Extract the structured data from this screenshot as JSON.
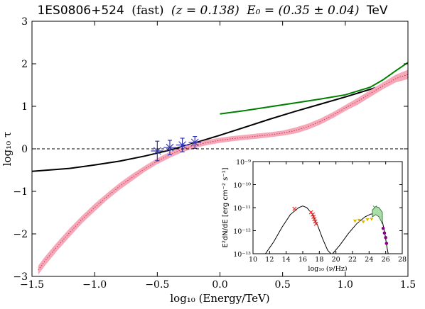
{
  "title": {
    "source": "1ES0806+524",
    "mode": "(fast)",
    "redshift": "(z = 0.138)",
    "energy": "E₀ = (0.35 ± 0.04)",
    "unit": "TeV"
  },
  "chart_data": [
    {
      "type": "line",
      "xlabel": "log₁₀ (Energy/TeV)",
      "ylabel": "log₁₀ τ",
      "xlim": [
        -1.5,
        1.5
      ],
      "ylim": [
        -3,
        3
      ],
      "xticks": [
        -1.5,
        -1.0,
        -0.5,
        0.0,
        0.5,
        1.0,
        1.5
      ],
      "xtick_labels": [
        "−1.5",
        "−1.0",
        "−0.5",
        "0.0",
        "0.5",
        "1.0",
        "1.5"
      ],
      "yticks": [
        -3,
        -2,
        -1,
        0,
        1,
        2,
        3
      ],
      "ytick_labels": [
        "−3",
        "−2",
        "−1",
        "0",
        "1",
        "2",
        "3"
      ],
      "grid": false,
      "reference_line": {
        "y": 0,
        "style": "dashed",
        "color": "#000000"
      },
      "series": [
        {
          "style": "line",
          "color": "#000000",
          "x": [
            -1.5,
            -1.2,
            -1.0,
            -0.8,
            -0.6,
            -0.4,
            -0.2,
            0.0,
            0.2,
            0.4,
            0.6,
            0.8,
            1.0,
            1.2,
            1.4,
            1.5
          ],
          "y": [
            -0.53,
            -0.46,
            -0.38,
            -0.29,
            -0.17,
            -0.03,
            0.14,
            0.32,
            0.51,
            0.7,
            0.88,
            1.05,
            1.22,
            1.4,
            1.58,
            1.67
          ]
        },
        {
          "style": "line",
          "color": "#008000",
          "x": [
            0.0,
            0.2,
            0.4,
            0.6,
            0.8,
            1.0,
            1.2,
            1.3,
            1.4,
            1.5
          ],
          "y": [
            0.82,
            0.9,
            0.99,
            1.08,
            1.17,
            1.27,
            1.45,
            1.62,
            1.83,
            2.03
          ]
        },
        {
          "style": "band",
          "fill": "#f7a8b8",
          "median_color": "#c03050",
          "x": [
            -1.45,
            -1.4,
            -1.3,
            -1.2,
            -1.1,
            -1.0,
            -0.9,
            -0.8,
            -0.7,
            -0.6,
            -0.5,
            -0.4,
            -0.3,
            -0.2,
            -0.1,
            0.0,
            0.1,
            0.2,
            0.3,
            0.4,
            0.5,
            0.6,
            0.7,
            0.8,
            0.9,
            1.0,
            1.1,
            1.2,
            1.3,
            1.4,
            1.5
          ],
          "y": [
            -2.85,
            -2.65,
            -2.3,
            -1.97,
            -1.66,
            -1.38,
            -1.12,
            -0.88,
            -0.67,
            -0.47,
            -0.29,
            -0.14,
            -0.01,
            0.08,
            0.15,
            0.2,
            0.24,
            0.27,
            0.3,
            0.33,
            0.37,
            0.43,
            0.52,
            0.64,
            0.79,
            0.96,
            1.12,
            1.3,
            1.48,
            1.65,
            1.75
          ],
          "upper": [
            -2.75,
            -2.55,
            -2.2,
            -1.87,
            -1.57,
            -1.29,
            -1.04,
            -0.8,
            -0.59,
            -0.4,
            -0.22,
            -0.07,
            0.05,
            0.14,
            0.21,
            0.26,
            0.3,
            0.33,
            0.36,
            0.39,
            0.43,
            0.5,
            0.59,
            0.71,
            0.86,
            1.03,
            1.2,
            1.38,
            1.56,
            1.74,
            1.86
          ],
          "lower": [
            -2.96,
            -2.76,
            -2.4,
            -2.07,
            -1.75,
            -1.47,
            -1.2,
            -0.96,
            -0.75,
            -0.54,
            -0.36,
            -0.21,
            -0.08,
            0.02,
            0.09,
            0.14,
            0.18,
            0.21,
            0.24,
            0.27,
            0.31,
            0.36,
            0.45,
            0.57,
            0.72,
            0.89,
            1.04,
            1.22,
            1.4,
            1.56,
            1.64
          ]
        },
        {
          "style": "points",
          "color": "#3333aa",
          "marker": "x",
          "x": [
            -0.5,
            -0.4,
            -0.3,
            -0.2
          ],
          "y": [
            -0.05,
            0.03,
            0.09,
            0.15
          ],
          "yerr": [
            0.23,
            0.17,
            0.16,
            0.14
          ],
          "xerr": [
            0.05,
            0.05,
            0.05,
            0.05
          ]
        }
      ]
    },
    {
      "type": "scatter",
      "xlabel": "log₁₀ (ν/Hz)",
      "ylabel": "E²dN/dE [erg cm⁻² s⁻¹]",
      "xlim": [
        10,
        28
      ],
      "ylim": [
        -13,
        -9
      ],
      "yscale": "log",
      "xticks": [
        10,
        12,
        14,
        16,
        18,
        20,
        22,
        24,
        26,
        28
      ],
      "xtick_labels": [
        "10",
        "12",
        "14",
        "16",
        "18",
        "20",
        "22",
        "24",
        "26",
        "28"
      ],
      "yticks": [
        -13,
        -12,
        -11,
        -10,
        -9
      ],
      "ytick_labels": [
        "10⁻¹³",
        "10⁻¹²",
        "10⁻¹¹",
        "10⁻¹⁰",
        "10⁻⁹"
      ],
      "series": [
        {
          "style": "line",
          "color": "#000000",
          "x": [
            11.5,
            12.5,
            13.5,
            14.5,
            15.5,
            16.0,
            16.5,
            17.2,
            17.8,
            18.4,
            19.0,
            19.4
          ],
          "y": [
            -13.0,
            -12.48,
            -11.85,
            -11.3,
            -11.0,
            -10.93,
            -11.0,
            -11.3,
            -11.78,
            -12.35,
            -12.85,
            -13.0
          ]
        },
        {
          "style": "line",
          "color": "#000000",
          "x": [
            19.6,
            20.5,
            21.5,
            22.5,
            23.5,
            24.2,
            24.8,
            25.2,
            25.6,
            25.9,
            26.1,
            26.3
          ],
          "y": [
            -13.0,
            -12.62,
            -12.12,
            -11.7,
            -11.4,
            -11.28,
            -11.25,
            -11.3,
            -11.6,
            -12.1,
            -12.6,
            -13.0
          ]
        },
        {
          "style": "points",
          "color": "#ee2222",
          "marker": "x",
          "x": [
            15.0,
            17.0,
            17.2,
            17.3,
            17.4,
            17.5,
            17.6
          ],
          "y": [
            -11.05,
            -11.2,
            -11.3,
            -11.4,
            -11.5,
            -11.6,
            -11.7
          ]
        },
        {
          "style": "points",
          "color": "#ddbb00",
          "marker": "triangle",
          "x": [
            22.3,
            22.8,
            23.3,
            23.8,
            24.3
          ],
          "y": [
            -11.58,
            -11.55,
            -11.62,
            -11.52,
            -11.5
          ]
        },
        {
          "style": "points",
          "color": "#22aa44",
          "marker": "x",
          "x": [
            24.7,
            25.0,
            25.3
          ],
          "y": [
            -11.0,
            -11.1,
            -11.25
          ]
        },
        {
          "style": "points",
          "color": "#880088",
          "marker": "circle",
          "x": [
            25.7,
            25.85,
            26.0,
            26.1
          ],
          "y": [
            -11.9,
            -12.1,
            -12.3,
            -12.55
          ]
        },
        {
          "style": "band",
          "fill": "#aaddaa",
          "edge": "#226622",
          "x": [
            24.4,
            24.8,
            25.2,
            25.6
          ],
          "upper": [
            -11.1,
            -10.95,
            -11.0,
            -11.2
          ],
          "lower": [
            -11.4,
            -11.3,
            -11.4,
            -11.7
          ]
        }
      ]
    }
  ]
}
